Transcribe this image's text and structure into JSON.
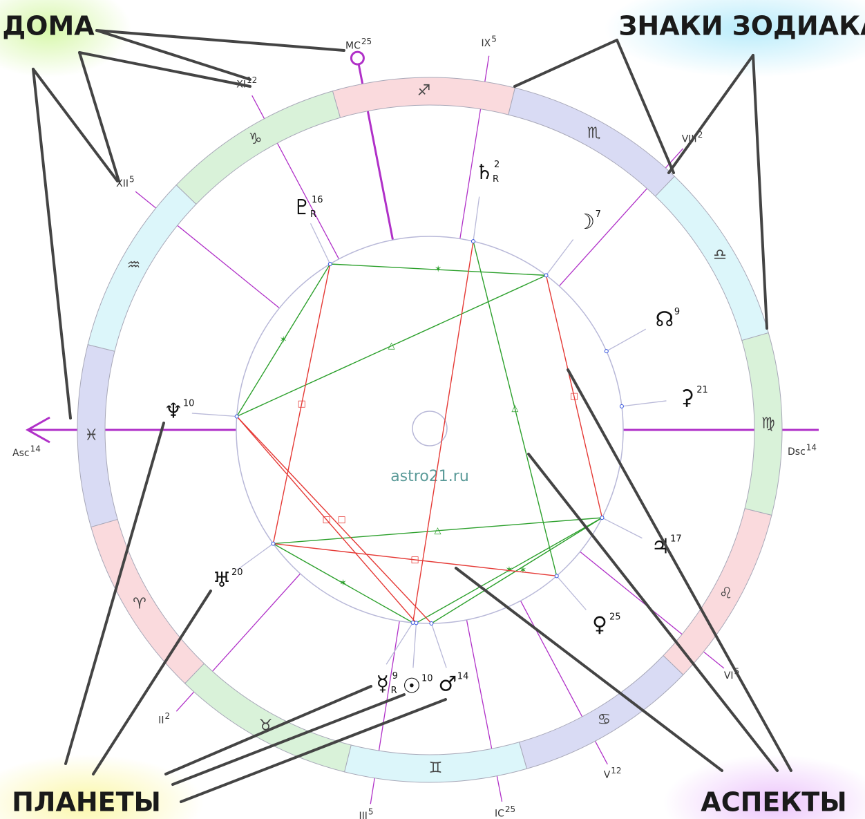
{
  "corner_labels": {
    "houses": "ДОМА",
    "signs": "ЗНАКИ ЗОДИАКА",
    "planets": "ПЛАНЕТЫ",
    "aspects": "АСПЕКТЫ"
  },
  "watermark": "astro21.ru",
  "signs": [
    {
      "glyph": "♓",
      "color": "#d9dbf4"
    },
    {
      "glyph": "♈",
      "color": "#fadadd"
    },
    {
      "glyph": "♉",
      "color": "#d9f2d9"
    },
    {
      "glyph": "♊",
      "color": "#dcf6fa"
    },
    {
      "glyph": "♋",
      "color": "#d9dbf4"
    },
    {
      "glyph": "♌",
      "color": "#fadadd"
    },
    {
      "glyph": "♍",
      "color": "#d9f2d9"
    },
    {
      "glyph": "♎",
      "color": "#dcf6fa"
    },
    {
      "glyph": "♏",
      "color": "#d9dbf4"
    },
    {
      "glyph": "♐",
      "color": "#fadadd"
    },
    {
      "glyph": "♑",
      "color": "#d9f2d9"
    },
    {
      "glyph": "♒",
      "color": "#dcf6fa"
    }
  ],
  "houses": [
    {
      "label": "Asc",
      "degree": 14
    },
    {
      "label": "II",
      "degree": 2
    },
    {
      "label": "III",
      "degree": 5
    },
    {
      "label": "IC",
      "degree": 25
    },
    {
      "label": "V",
      "degree": 12
    },
    {
      "label": "VI",
      "degree": 5
    },
    {
      "label": "Dsc",
      "degree": 14
    },
    {
      "label": "VIII",
      "degree": 2
    },
    {
      "label": "IX",
      "degree": 5
    },
    {
      "label": "MC",
      "degree": 25
    },
    {
      "label": "XI",
      "degree": 12
    },
    {
      "label": "XII",
      "degree": 5
    }
  ],
  "planets": [
    {
      "glyph": "♇",
      "degree": 16,
      "retrograde": "R"
    },
    {
      "glyph": "♄",
      "degree": 2,
      "retrograde": "R"
    },
    {
      "glyph": "☽",
      "degree": 7
    },
    {
      "glyph": "☊",
      "degree": 9
    },
    {
      "glyph": "⚳",
      "degree": 21
    },
    {
      "glyph": "♃",
      "degree": 17
    },
    {
      "glyph": "♀",
      "degree": 25
    },
    {
      "glyph": "♂",
      "degree": 14
    },
    {
      "glyph": "☉",
      "degree": 10
    },
    {
      "glyph": "☿",
      "degree": 9,
      "retrograde": "R"
    },
    {
      "glyph": "♅",
      "degree": 20
    },
    {
      "glyph": "♆",
      "degree": 10
    }
  ],
  "aspects": [
    {
      "symbol": "✶",
      "color": "#2ca02c"
    },
    {
      "symbol": "✶",
      "color": "#2ca02c"
    },
    {
      "symbol": "△",
      "color": "#2ca02c"
    },
    {
      "symbol": "△",
      "color": "#2ca02c"
    },
    {
      "symbol": "△",
      "color": "#2ca02c"
    },
    {
      "symbol": "✶",
      "color": "#2ca02c"
    },
    {
      "symbol": "✶",
      "color": "#2ca02c"
    },
    {
      "symbol": "✶",
      "color": "#2ca02c"
    },
    {
      "symbol": "□",
      "color": "#e53935"
    },
    {
      "symbol": "□",
      "color": "#e53935"
    },
    {
      "color": "#e53935"
    },
    {
      "symbol": "□",
      "color": "#e53935"
    },
    {
      "symbol": "□",
      "color": "#e53935"
    },
    {
      "symbol": "□",
      "color": "#e53935"
    }
  ]
}
